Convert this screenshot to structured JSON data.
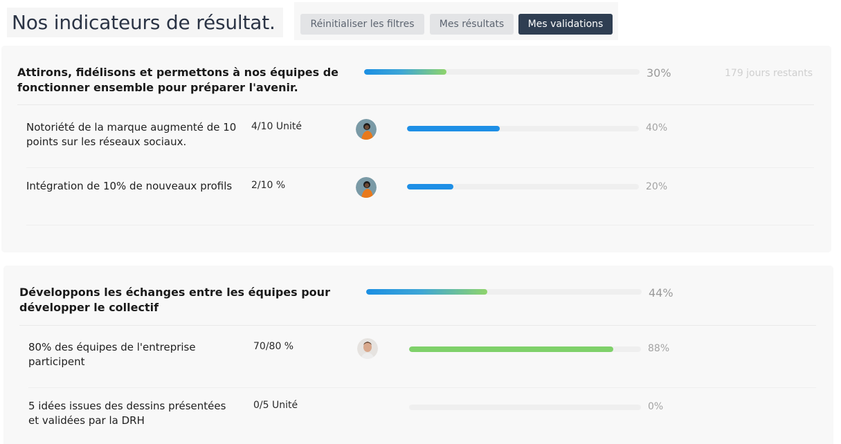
{
  "header": {
    "title": "Nos indicateurs de résultat.",
    "buttons": {
      "reset": "Réinitialiser les filtres",
      "results": "Mes résultats",
      "validations": "Mes validations"
    }
  },
  "objectives": [
    {
      "title": "Attirons, fidélisons et permettons à nos équipes de fonctionner ensemble pour préparer l'avenir.",
      "progress": 30,
      "progress_label": "30%",
      "days_left": "179 jours restants",
      "key_results": [
        {
          "title": "Notoriété de la marque augmenté de 10 points sur les réseaux sociaux.",
          "value": "4/10 Unité",
          "progress": 40,
          "progress_label": "40%",
          "avatar": "user-avatar"
        },
        {
          "title": "Intégration de 10% de nouveaux profils",
          "value": "2/10 %",
          "progress": 20,
          "progress_label": "20%",
          "avatar": "user-avatar"
        }
      ]
    },
    {
      "title": "Développons les échanges entre les équipes pour développer le collectif",
      "progress": 44,
      "progress_label": "44%",
      "key_results": [
        {
          "title": "80% des équipes de l'entreprise participent",
          "value": "70/80 %",
          "progress": 88,
          "progress_label": "88%",
          "avatar": "user-avatar"
        },
        {
          "title": "5 idées issues des dessins présentées et validées par la DRH",
          "value": "0/5 Unité",
          "progress": 0,
          "progress_label": "0%"
        }
      ]
    }
  ],
  "colors": {
    "primary_dark": "#2f3e52",
    "bar_blue": "#1e8fe6",
    "bar_green": "#7fd16a"
  }
}
